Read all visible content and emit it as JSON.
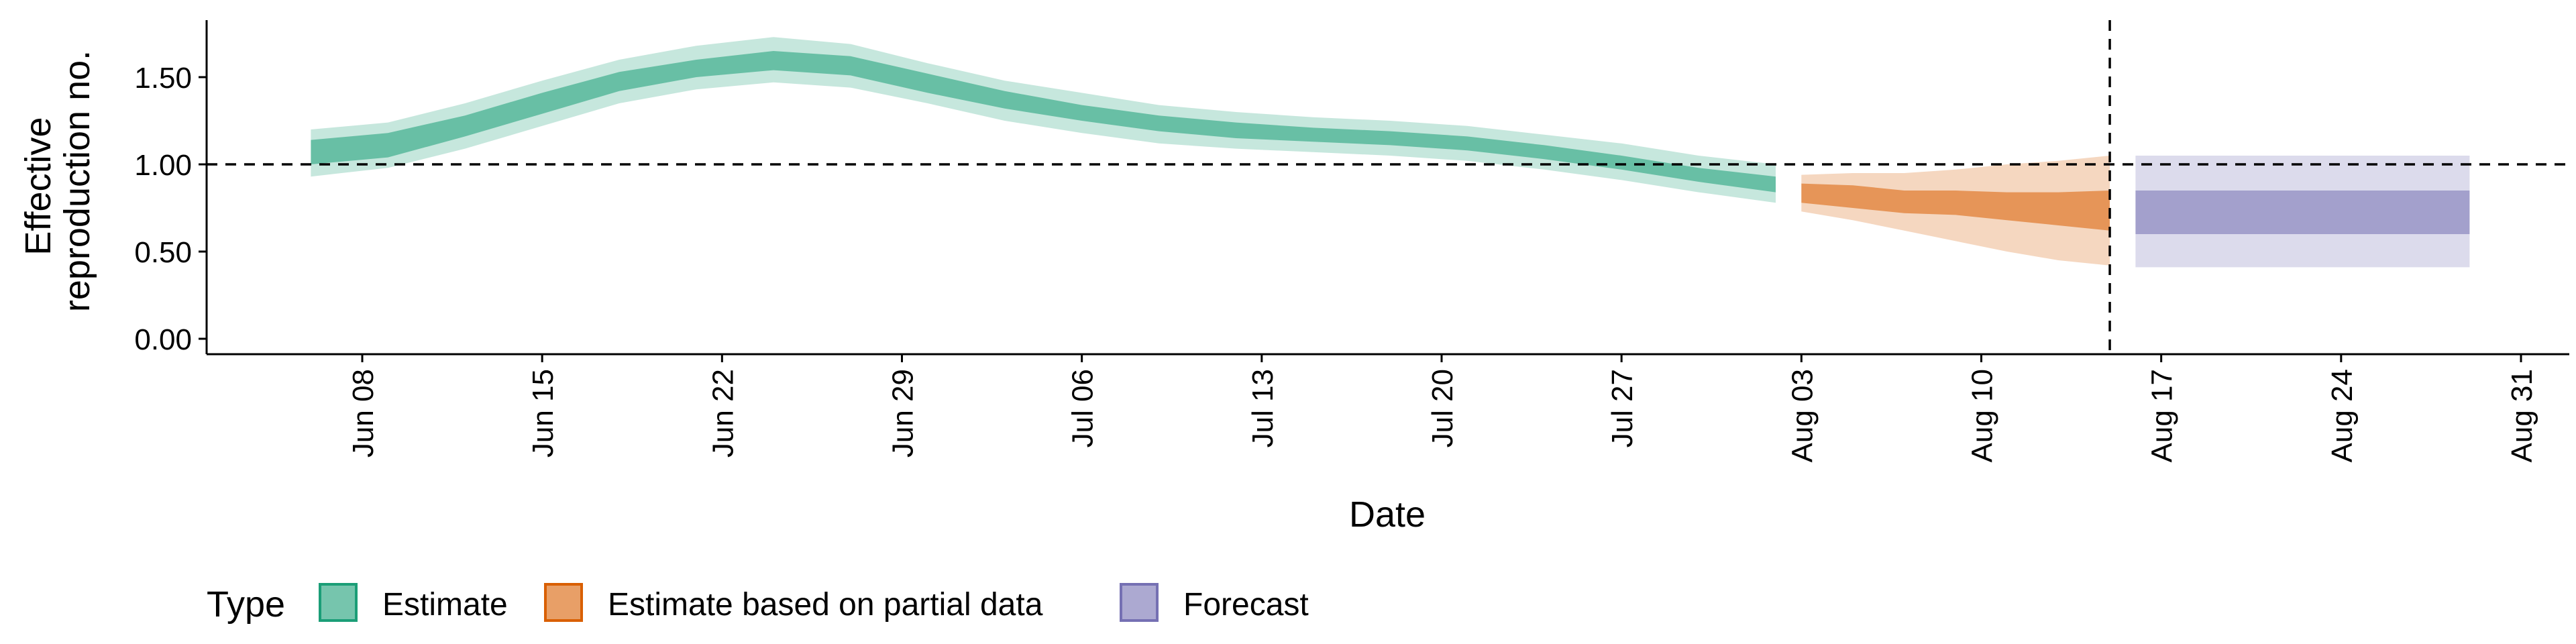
{
  "chart_data": {
    "type": "area",
    "title": "",
    "xlabel": "Date",
    "ylabel_lines": [
      "Effective",
      "reproduction no."
    ],
    "ylim": [
      -0.05,
      1.83
    ],
    "xlim": [
      "2020-06-02",
      "2020-09-01"
    ],
    "y_ticks": [
      0.0,
      0.5,
      1.0,
      1.5
    ],
    "y_tick_labels": [
      "0.00",
      "0.50",
      "1.00",
      "1.50"
    ],
    "x_ticks": [
      "2020-06-08",
      "2020-06-15",
      "2020-06-22",
      "2020-06-29",
      "2020-07-06",
      "2020-07-13",
      "2020-07-20",
      "2020-07-27",
      "2020-08-03",
      "2020-08-10",
      "2020-08-17",
      "2020-08-24",
      "2020-08-31"
    ],
    "x_tick_labels": [
      "Jun 08",
      "Jun 15",
      "Jun 22",
      "Jun 29",
      "Jul 06",
      "Jul 13",
      "Jul 20",
      "Jul 27",
      "Aug 03",
      "Aug 10",
      "Aug 17",
      "Aug 24",
      "Aug 31"
    ],
    "grid": false,
    "reference_lines": [
      {
        "axis": "y",
        "value": 1.0,
        "style": "dashed"
      },
      {
        "axis": "x",
        "value": "2020-08-15",
        "style": "dashed"
      }
    ],
    "legend": {
      "position": "bottom-left",
      "title": "Type",
      "entries": [
        "Estimate",
        "Estimate based on partial data",
        "Forecast"
      ]
    },
    "series": [
      {
        "name": "Estimate",
        "color": "#1b9e77",
        "points": [
          {
            "x": "2020-06-06",
            "inner": [
              1.0,
              1.14
            ],
            "outer": [
              0.93,
              1.2
            ]
          },
          {
            "x": "2020-06-09",
            "inner": [
              1.04,
              1.18
            ],
            "outer": [
              0.98,
              1.24
            ]
          },
          {
            "x": "2020-06-12",
            "inner": [
              1.16,
              1.28
            ],
            "outer": [
              1.09,
              1.35
            ]
          },
          {
            "x": "2020-06-15",
            "inner": [
              1.29,
              1.41
            ],
            "outer": [
              1.22,
              1.48
            ]
          },
          {
            "x": "2020-06-18",
            "inner": [
              1.42,
              1.53
            ],
            "outer": [
              1.35,
              1.6
            ]
          },
          {
            "x": "2020-06-21",
            "inner": [
              1.5,
              1.6
            ],
            "outer": [
              1.43,
              1.68
            ]
          },
          {
            "x": "2020-06-24",
            "inner": [
              1.54,
              1.65
            ],
            "outer": [
              1.47,
              1.73
            ]
          },
          {
            "x": "2020-06-27",
            "inner": [
              1.51,
              1.62
            ],
            "outer": [
              1.44,
              1.69
            ]
          },
          {
            "x": "2020-06-30",
            "inner": [
              1.41,
              1.52
            ],
            "outer": [
              1.35,
              1.58
            ]
          },
          {
            "x": "2020-07-03",
            "inner": [
              1.32,
              1.42
            ],
            "outer": [
              1.25,
              1.48
            ]
          },
          {
            "x": "2020-07-06",
            "inner": [
              1.25,
              1.34
            ],
            "outer": [
              1.18,
              1.41
            ]
          },
          {
            "x": "2020-07-09",
            "inner": [
              1.19,
              1.28
            ],
            "outer": [
              1.12,
              1.34
            ]
          },
          {
            "x": "2020-07-12",
            "inner": [
              1.15,
              1.24
            ],
            "outer": [
              1.09,
              1.3
            ]
          },
          {
            "x": "2020-07-15",
            "inner": [
              1.13,
              1.21
            ],
            "outer": [
              1.07,
              1.27
            ]
          },
          {
            "x": "2020-07-18",
            "inner": [
              1.11,
              1.19
            ],
            "outer": [
              1.05,
              1.25
            ]
          },
          {
            "x": "2020-07-21",
            "inner": [
              1.08,
              1.16
            ],
            "outer": [
              1.02,
              1.22
            ]
          },
          {
            "x": "2020-07-24",
            "inner": [
              1.03,
              1.11
            ],
            "outer": [
              0.97,
              1.17
            ]
          },
          {
            "x": "2020-07-27",
            "inner": [
              0.97,
              1.05
            ],
            "outer": [
              0.91,
              1.12
            ]
          },
          {
            "x": "2020-07-30",
            "inner": [
              0.9,
              0.98
            ],
            "outer": [
              0.84,
              1.05
            ]
          },
          {
            "x": "2020-08-02",
            "inner": [
              0.84,
              0.93
            ],
            "outer": [
              0.78,
              1.0
            ]
          }
        ]
      },
      {
        "name": "Estimate based on partial data",
        "color": "#d95f02",
        "points": [
          {
            "x": "2020-08-03",
            "inner": [
              0.78,
              0.89
            ],
            "outer": [
              0.73,
              0.94
            ]
          },
          {
            "x": "2020-08-05",
            "inner": [
              0.75,
              0.88
            ],
            "outer": [
              0.68,
              0.95
            ]
          },
          {
            "x": "2020-08-07",
            "inner": [
              0.72,
              0.85
            ],
            "outer": [
              0.62,
              0.95
            ]
          },
          {
            "x": "2020-08-09",
            "inner": [
              0.71,
              0.85
            ],
            "outer": [
              0.56,
              0.97
            ]
          },
          {
            "x": "2020-08-11",
            "inner": [
              0.68,
              0.84
            ],
            "outer": [
              0.5,
              1.0
            ]
          },
          {
            "x": "2020-08-13",
            "inner": [
              0.65,
              0.84
            ],
            "outer": [
              0.45,
              1.02
            ]
          },
          {
            "x": "2020-08-15",
            "inner": [
              0.62,
              0.85
            ],
            "outer": [
              0.42,
              1.05
            ]
          }
        ]
      },
      {
        "name": "Forecast",
        "color": "#7570b3",
        "points": [
          {
            "x": "2020-08-16",
            "inner": [
              0.6,
              0.85
            ],
            "outer": [
              0.41,
              1.05
            ]
          },
          {
            "x": "2020-08-29",
            "inner": [
              0.6,
              0.85
            ],
            "outer": [
              0.41,
              1.05
            ]
          }
        ]
      }
    ]
  }
}
